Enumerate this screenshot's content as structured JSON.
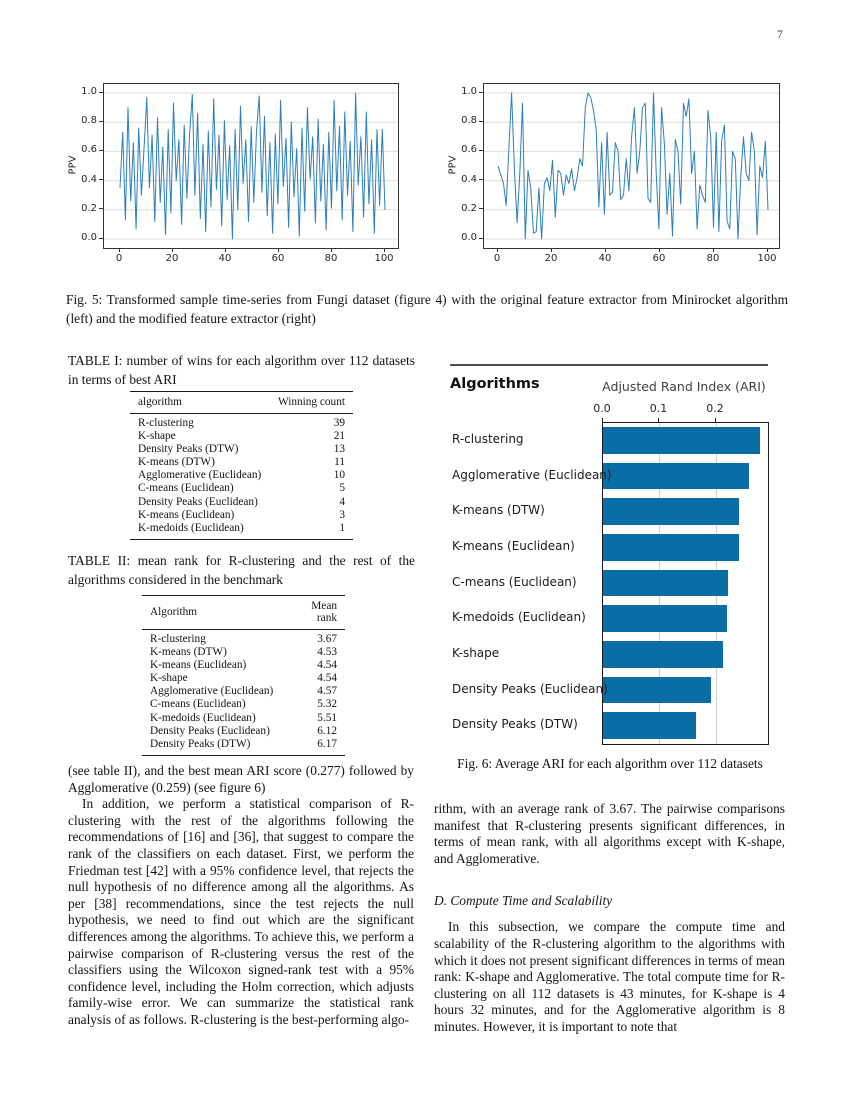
{
  "page": {
    "number": "7"
  },
  "colors": {
    "line": "#2e7ebc",
    "bar": "#0b6da6",
    "grid": "#dcdcdc",
    "spine": "#333333",
    "rule": "#4d4d4d"
  },
  "figures": {
    "fig5": {
      "caption": "Fig. 5: Transformed sample time-series from Fungi dataset (figure 4) with the original feature extractor from Minirocket algorithm (left) and the modified feature extractor (right)"
    },
    "fig6": {
      "header_left": "Algorithms",
      "header_right": "Adjusted Rand Index (ARI)",
      "caption": "Fig. 6: Average ARI for each algorithm over 112 datasets"
    }
  },
  "chart_data": [
    {
      "type": "line",
      "panel": "left",
      "ylabel": "PPV",
      "xlim": [
        -5,
        105
      ],
      "ylim": [
        0,
        1
      ],
      "x_ticks": [
        0,
        20,
        40,
        60,
        80,
        100
      ],
      "y_ticks": [
        0.0,
        0.2,
        0.4,
        0.6,
        0.8,
        1.0
      ],
      "grid": "horizontal",
      "values": [
        0.35,
        0.73,
        0.13,
        0.9,
        0.26,
        0.66,
        0.07,
        0.76,
        0.3,
        0.63,
        0.97,
        0.35,
        0.71,
        0.12,
        0.83,
        0.25,
        0.63,
        0.03,
        0.75,
        0.18,
        0.93,
        0.4,
        0.68,
        0.1,
        0.78,
        0.28,
        0.72,
        0.99,
        0.3,
        0.86,
        0.14,
        0.65,
        0.05,
        0.74,
        0.22,
        0.96,
        0.34,
        0.71,
        0.09,
        0.81,
        0.27,
        0.64,
        0.0,
        0.75,
        0.2,
        0.91,
        0.38,
        0.68,
        0.12,
        0.77,
        0.25,
        0.74,
        0.98,
        0.32,
        0.84,
        0.16,
        0.66,
        0.04,
        0.72,
        0.24,
        0.95,
        0.36,
        0.69,
        0.08,
        0.8,
        0.29,
        0.62,
        0.02,
        0.76,
        0.19,
        0.9,
        0.41,
        0.7,
        0.11,
        0.82,
        0.26,
        0.65,
        0.06,
        0.73,
        0.21,
        0.95,
        0.33,
        0.77,
        0.13,
        0.87,
        0.3,
        0.67,
        0.05,
        1.0,
        0.37,
        0.7,
        0.15,
        0.87,
        0.24,
        0.68,
        0.04,
        0.75,
        0.23,
        0.75,
        0.2
      ]
    },
    {
      "type": "line",
      "panel": "right",
      "ylabel": "PPV",
      "xlim": [
        -5,
        105
      ],
      "ylim": [
        0,
        1
      ],
      "x_ticks": [
        0,
        20,
        40,
        60,
        80,
        100
      ],
      "y_ticks": [
        0.0,
        0.2,
        0.4,
        0.6,
        0.8,
        1.0
      ],
      "grid": "horizontal",
      "values": [
        0.5,
        0.44,
        0.38,
        0.23,
        0.62,
        1.0,
        0.48,
        0.11,
        0.45,
        0.93,
        0.0,
        0.47,
        0.35,
        0.04,
        0.05,
        0.35,
        0.0,
        0.38,
        0.42,
        0.33,
        0.54,
        0.15,
        0.47,
        0.45,
        0.3,
        0.44,
        0.38,
        0.48,
        0.33,
        0.42,
        0.55,
        0.5,
        0.9,
        1.0,
        0.97,
        0.88,
        0.75,
        0.22,
        0.66,
        0.17,
        0.73,
        0.3,
        0.32,
        0.66,
        0.6,
        0.27,
        0.3,
        0.55,
        0.33,
        0.7,
        0.9,
        0.45,
        0.6,
        0.9,
        0.93,
        0.28,
        0.25,
        1.0,
        0.45,
        0.07,
        0.9,
        0.65,
        0.17,
        0.45,
        0.02,
        0.68,
        0.6,
        0.24,
        0.93,
        0.84,
        0.96,
        0.45,
        0.6,
        0.07,
        0.37,
        0.3,
        0.25,
        0.88,
        0.7,
        0.08,
        0.73,
        0.05,
        0.67,
        0.78,
        0.12,
        0.07,
        0.6,
        0.55,
        0.0,
        0.42,
        0.7,
        0.45,
        0.4,
        0.73,
        0.6,
        0.03,
        0.5,
        0.42,
        0.67,
        0.2
      ]
    },
    {
      "type": "bar",
      "orientation": "horizontal",
      "title": "Adjusted Rand Index (ARI)",
      "categories_header": "Algorithms",
      "categories": [
        "R-clustering",
        "Agglomerative (Euclidean)",
        "K-means (DTW)",
        "K-means (Euclidean)",
        "C-means (Euclidean)",
        "K-medoids (Euclidean)",
        "K-shape",
        "Density Peaks (Euclidean)",
        "Density Peaks (DTW)"
      ],
      "values": [
        0.277,
        0.259,
        0.241,
        0.24,
        0.221,
        0.22,
        0.212,
        0.191,
        0.164
      ],
      "x_ticks": [
        0.0,
        0.1,
        0.2
      ],
      "xlim": [
        0,
        0.292
      ],
      "grid": "vertical",
      "legend": "none"
    }
  ],
  "tables": {
    "table1": {
      "caption": "TABLE I: number of wins for each algorithm over 112 datasets in terms of best ARI",
      "columns": [
        "algorithm",
        "Winning count"
      ],
      "rows": [
        [
          "R-clustering",
          "39"
        ],
        [
          "K-shape",
          "21"
        ],
        [
          "Density Peaks (DTW)",
          "13"
        ],
        [
          "K-means (DTW)",
          "11"
        ],
        [
          "Agglomerative (Euclidean)",
          "10"
        ],
        [
          "C-means (Euclidean)",
          "5"
        ],
        [
          "Density Peaks (Euclidean)",
          "4"
        ],
        [
          "K-means (Euclidean)",
          "3"
        ],
        [
          "K-medoids (Euclidean)",
          "1"
        ]
      ]
    },
    "table2": {
      "caption": "TABLE II: mean rank for R-clustering and the rest of the algorithms considered in the benchmark",
      "columns": [
        "Algorithm",
        "Mean rank"
      ],
      "rows": [
        [
          "R-clustering",
          "3.67"
        ],
        [
          "K-means (DTW)",
          "4.53"
        ],
        [
          "K-means (Euclidean)",
          "4.54"
        ],
        [
          "K-shape",
          "4.54"
        ],
        [
          "Agglomerative (Euclidean)",
          "4.57"
        ],
        [
          "C-means (Euclidean)",
          "5.32"
        ],
        [
          "K-medoids (Euclidean)",
          "5.51"
        ],
        [
          "Density Peaks (Euclidean)",
          "6.12"
        ],
        [
          "Density Peaks (DTW)",
          "6.17"
        ]
      ]
    }
  },
  "body": {
    "left": {
      "p1": "(see table II), and the best mean ARI score (0.277) followed by Agglomerative (0.259) (see figure 6)",
      "p2": "In addition, we perform a statistical comparison of R-clustering with the rest of the algorithms following the recommendations of [16] and [36], that suggest to compare the rank of the classifiers on each dataset. First, we perform the Friedman test [42] with a 95% confidence level, that rejects the null hypothesis of no difference among all the algorithms. As per [38] recommendations, since the test rejects the null hypothesis, we need to find out which are the significant differences among the algorithms. To achieve this, we perform a pairwise comparison of R-clustering versus the rest of the classifiers using the Wilcoxon signed-rank test with a 95% confidence level, including the Holm correction, which adjusts family-wise error. We can summarize the statistical rank analysis of as follows. R-clustering is the best-performing algo-"
    },
    "right": {
      "p1": "rithm, with an average rank of 3.67. The pairwise comparisons manifest that R-clustering presents significant differences, in terms of mean rank, with all algorithms except with K-shape, and Agglomerative.",
      "heading": "D. Compute Time and Scalability",
      "p2": "In this subsection, we compare the compute time and scalability of the R-clustering algorithm to the algorithms with which it does not present significant differences in terms of mean rank: K-shape and Agglomerative. The total compute time for R-clustering on all 112 datasets is 43 minutes, for K-shape is 4 hours 32 minutes, and for the Agglomerative algorithm is 8 minutes. However, it is important to note that"
    }
  }
}
